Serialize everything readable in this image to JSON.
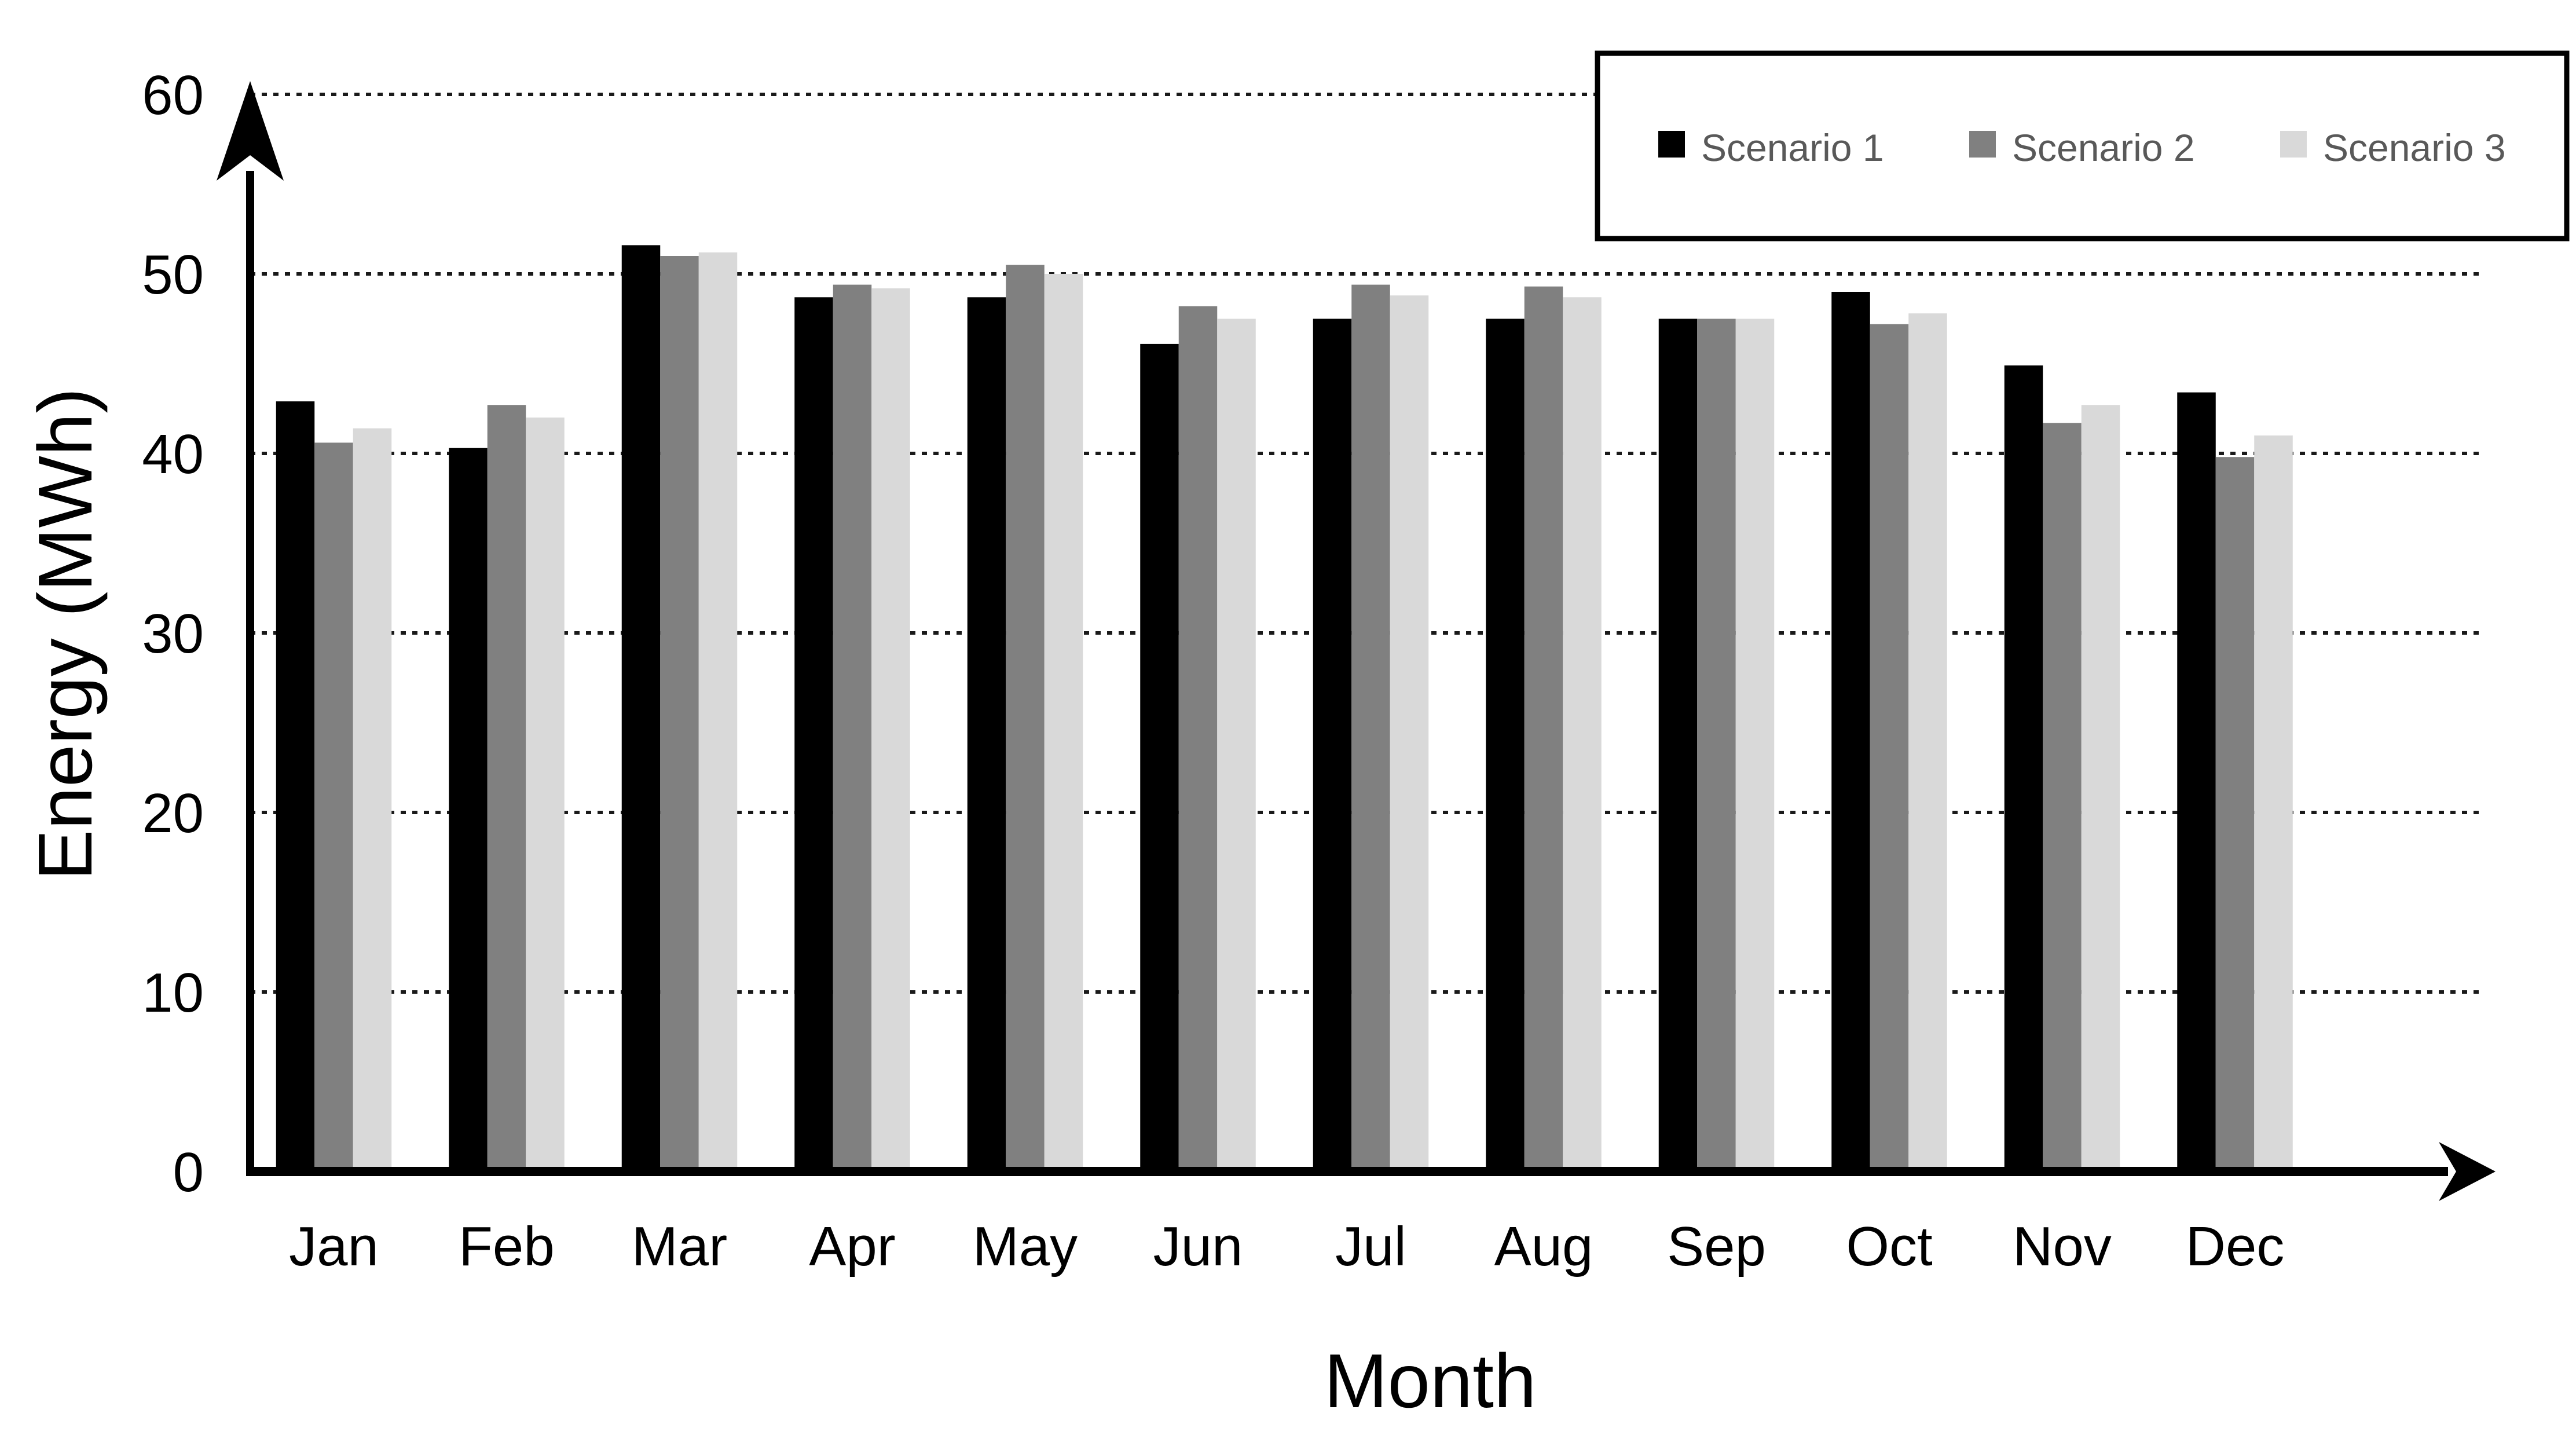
{
  "page": {
    "background": "#ffffff"
  },
  "chart_data": {
    "type": "bar",
    "title": "",
    "xlabel": "Month",
    "ylabel": "Energy (MWh)",
    "ylim": [
      0,
      60
    ],
    "yticks": [
      0,
      10,
      20,
      30,
      40,
      50,
      60
    ],
    "grid": "horizontal dotted",
    "legend_position": "top-right",
    "categories": [
      "Jan",
      "Feb",
      "Mar",
      "Apr",
      "May",
      "Jun",
      "Jul",
      "Aug",
      "Sep",
      "Oct",
      "Nov",
      "Dec"
    ],
    "series": [
      {
        "name": "Scenario 1",
        "color": "#000000",
        "values": [
          42.9,
          40.3,
          51.6,
          48.7,
          48.7,
          46.1,
          47.5,
          47.5,
          47.5,
          49.0,
          44.9,
          43.4
        ]
      },
      {
        "name": "Scenario 2",
        "color": "#808080",
        "values": [
          40.6,
          42.7,
          51.0,
          49.4,
          50.5,
          48.2,
          49.4,
          49.3,
          47.5,
          47.2,
          41.7,
          39.8
        ]
      },
      {
        "name": "Scenario 3",
        "color": "#D9D9D9",
        "values": [
          41.4,
          42.0,
          51.2,
          49.2,
          50.0,
          47.5,
          48.8,
          48.7,
          47.5,
          47.8,
          42.7,
          41.0
        ]
      }
    ],
    "colors": {
      "axis": "#000000",
      "grid": "#1a1a1a",
      "tick_label": "#000000",
      "axis_title": "#000000",
      "legend_text": "#595959",
      "legend_border": "#000000",
      "legend_fill": "#ffffff"
    }
  }
}
